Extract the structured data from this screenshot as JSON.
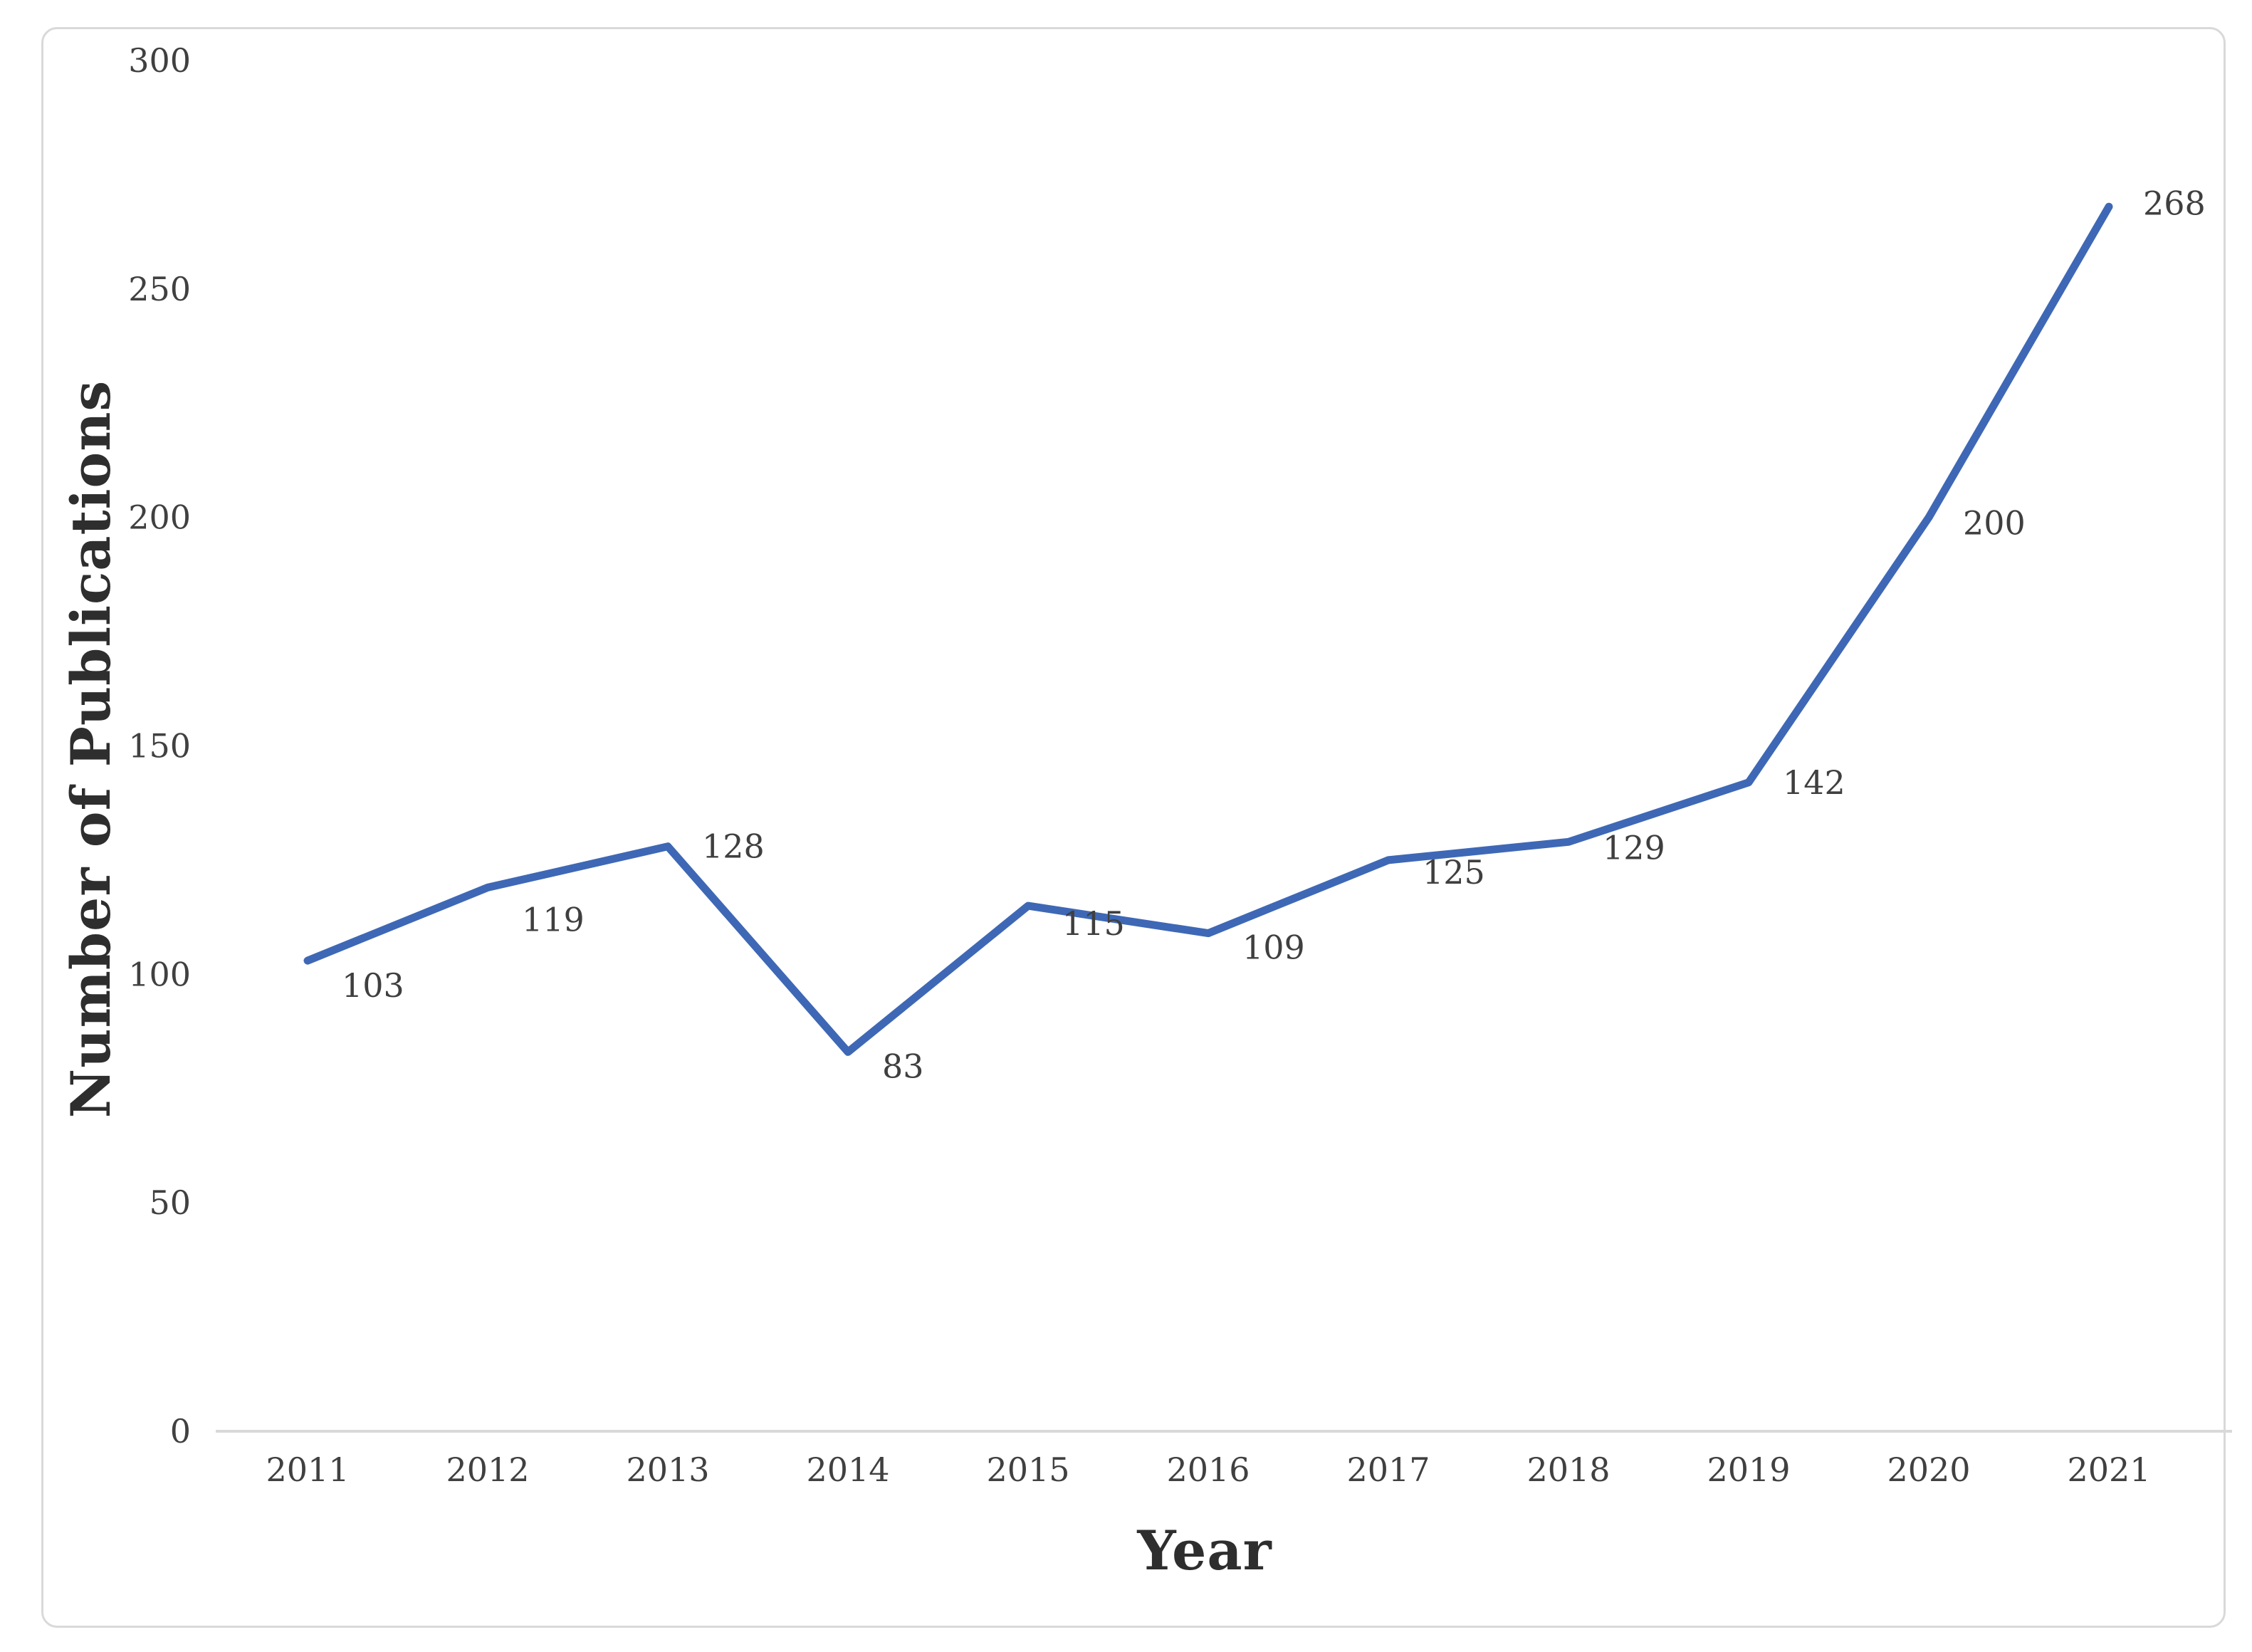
{
  "chart_data": {
    "type": "line",
    "title": "",
    "xlabel": "Year",
    "ylabel": "Number of Publications",
    "categories": [
      "2011",
      "2012",
      "2013",
      "2014",
      "2015",
      "2016",
      "2017",
      "2018",
      "2019",
      "2020",
      "2021"
    ],
    "values": [
      103,
      119,
      128,
      83,
      115,
      109,
      125,
      129,
      142,
      200,
      268
    ],
    "data_labels": [
      "103",
      "119",
      "128",
      "83",
      "115",
      "109",
      "125",
      "129",
      "142",
      "200",
      "268"
    ],
    "yticks": [
      0,
      50,
      100,
      150,
      200,
      250,
      300
    ],
    "ylim": [
      0,
      300
    ],
    "grid": "off",
    "legend": "none",
    "colors": {
      "line": "#3E68B5",
      "axis_line": "#d9d9d9",
      "tick_text": "#404040",
      "title_text": "#2e2e2e",
      "frame_border": "#d9d9d9",
      "background": "#ffffff"
    }
  }
}
